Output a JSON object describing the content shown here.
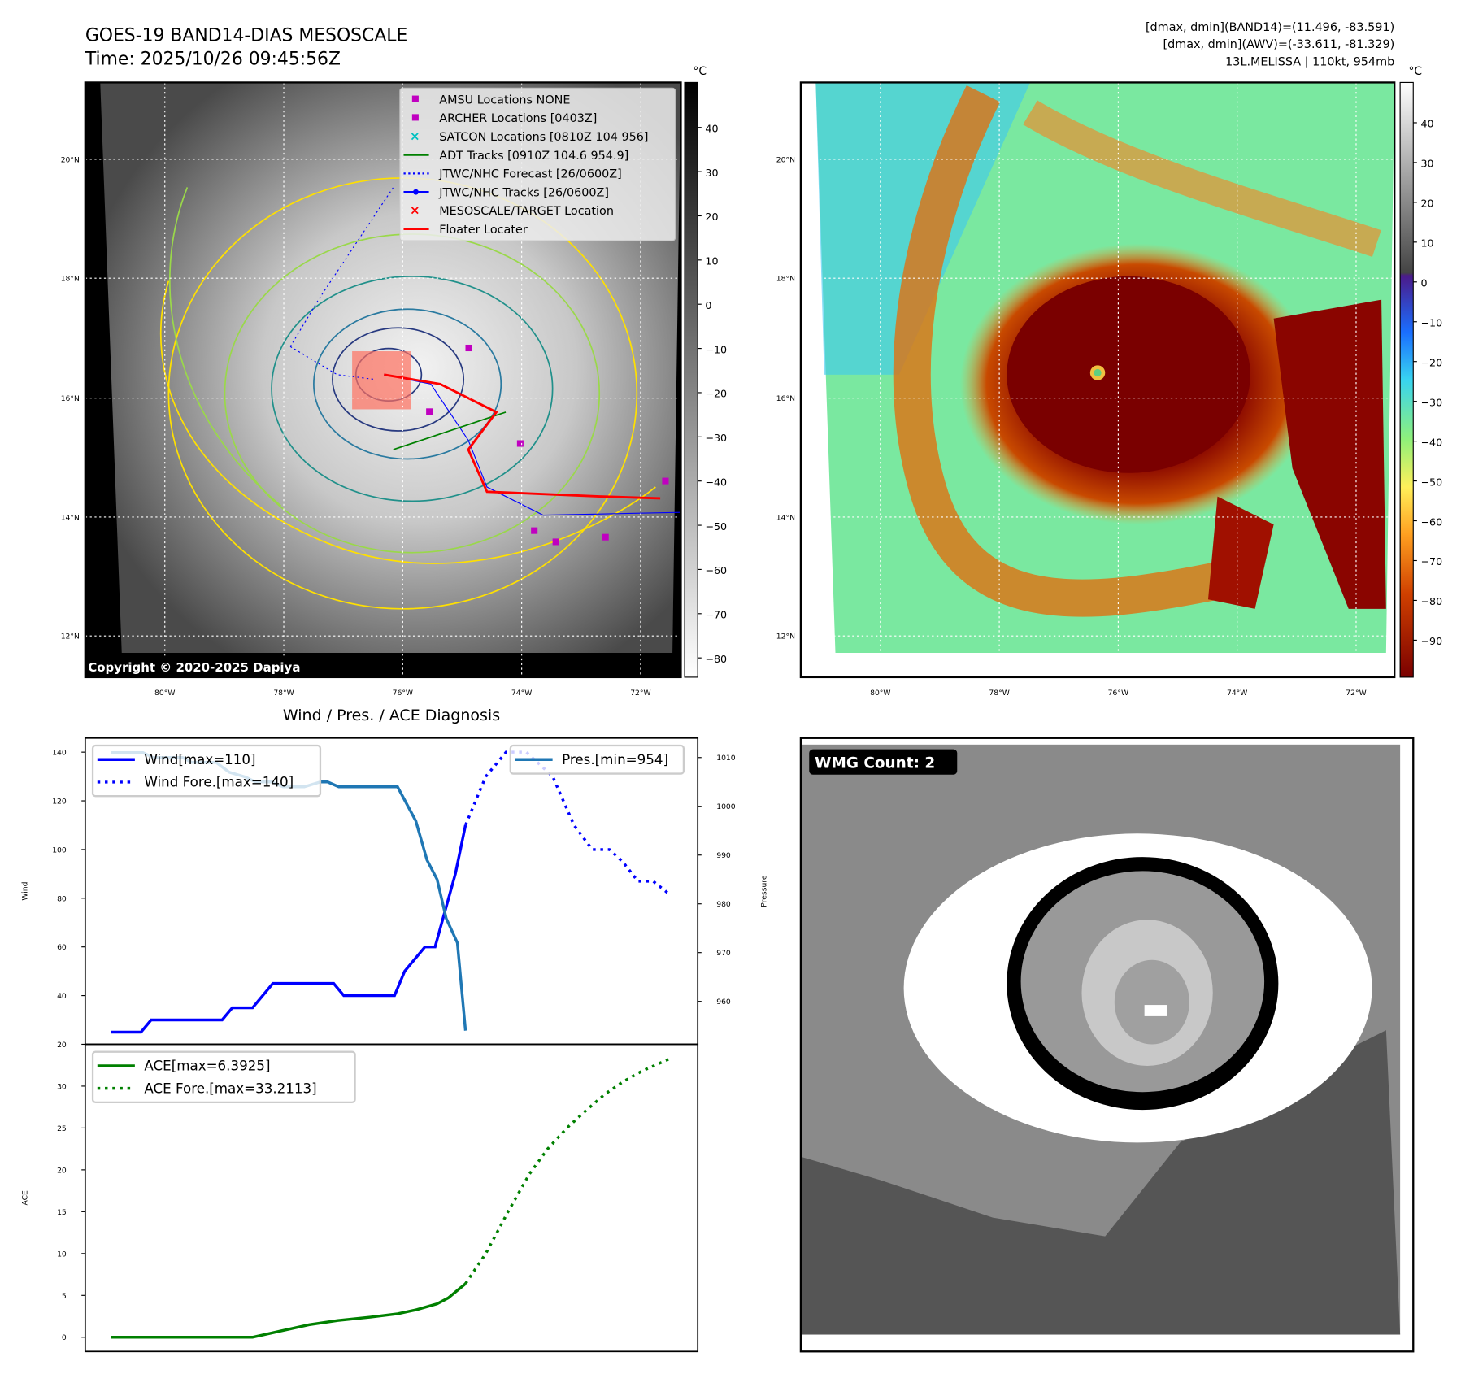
{
  "header": {
    "title": "GOES-19 BAND14-DIAS MESOSCALE",
    "time": "Time: 2025/10/26 09:45:56Z",
    "stats_band14": "[dmax, dmin](BAND14)=(11.496, -83.591)",
    "stats_awv": "[dmax, dmin](AWV)=(-33.611, -81.329)",
    "storm": "13L.MELISSA | 110kt, 954mb"
  },
  "map_left": {
    "copyright": "Copyright © 2020-2025 Dapiya",
    "lat_labels": [
      "20°N",
      "18°N",
      "16°N",
      "14°N",
      "12°N"
    ],
    "lon_labels": [
      "80°W",
      "78°W",
      "76°W",
      "74°W",
      "72°W"
    ],
    "colorbar_unit": "°C",
    "colorbar_ticks": [
      "40",
      "30",
      "20",
      "10",
      "0",
      "−10",
      "−20",
      "−30",
      "−40",
      "−50",
      "−60",
      "−70",
      "−80"
    ],
    "legend": [
      {
        "label": "AMSU Locations NONE",
        "marker": "square",
        "color": "#c000c0"
      },
      {
        "label": "ARCHER Locations [0403Z]",
        "marker": "square",
        "color": "#c000c0"
      },
      {
        "label": "SATCON Locations [0810Z 104 956]",
        "marker": "x",
        "color": "#00c0c0"
      },
      {
        "label": "ADT Tracks [0910Z 104.6 954.9]",
        "marker": "line",
        "color": "#008000"
      },
      {
        "label": "JTWC/NHC Forecast [26/0600Z]",
        "marker": "dotted",
        "color": "#0000ff"
      },
      {
        "label": "JTWC/NHC Tracks [26/0600Z]",
        "marker": "line-dot",
        "color": "#0000ff"
      },
      {
        "label": "MESOSCALE/TARGET Location",
        "marker": "x",
        "color": "#ff0000"
      },
      {
        "label": "Floater Locater",
        "marker": "line",
        "color": "#ff0000"
      }
    ]
  },
  "map_right": {
    "lat_labels": [
      "20°N",
      "18°N",
      "16°N",
      "14°N",
      "12°N"
    ],
    "lon_labels": [
      "80°W",
      "78°W",
      "76°W",
      "74°W",
      "72°W"
    ],
    "colorbar_unit": "°C",
    "colorbar_ticks": [
      "40",
      "30",
      "20",
      "10",
      "0",
      "−10",
      "−20",
      "−30",
      "−40",
      "−50",
      "−60",
      "−70",
      "−80",
      "−90"
    ]
  },
  "wmg": {
    "label": "WMG Count: 2"
  },
  "chart_data": {
    "type": "line",
    "title": "Wind / Pres. / ACE Diagnosis",
    "xlim": [
      -2.5,
      57.9
    ],
    "panels": [
      {
        "name": "wind-pressure",
        "ylabel": "Wind",
        "ylim": [
          20,
          145.8
        ],
        "yticks": [
          20,
          40,
          60,
          80,
          100,
          120,
          140
        ],
        "y2label": "Pressure",
        "y2lim": [
          951.2,
          1014
        ],
        "y2ticks": [
          960,
          970,
          980,
          990,
          1000,
          1010
        ],
        "series": [
          {
            "name": "Wind[max=110]",
            "axis": "left",
            "style": "solid",
            "color": "#0000ff",
            "x": [
              0,
              3,
              4,
              11,
              12,
              14,
              16,
              22,
              23,
              28,
              29,
              31,
              32,
              34,
              35
            ],
            "y": [
              25,
              25,
              30,
              30,
              35,
              35,
              45,
              45,
              40,
              40,
              50,
              60,
              60,
              90,
              110
            ]
          },
          {
            "name": "Wind Fore.[max=140]",
            "axis": "left",
            "style": "dotted",
            "color": "#0000ff",
            "x": [
              35,
              37,
              39,
              41,
              43.6,
              45.7,
              47.5,
              49.2,
              50.5,
              52,
              53.5,
              55
            ],
            "y": [
              110,
              130,
              140,
              140,
              130,
              110,
              100,
              100,
              95,
              87,
              87,
              82
            ]
          },
          {
            "name": "Pres.[min=954]",
            "axis": "right",
            "style": "solid",
            "color": "#1f77b4",
            "x": [
              0,
              3.2,
              4.2,
              7.1,
              8,
              10.4,
              11.7,
              13.3,
              14.3,
              15.9,
              17,
              19.1,
              20.7,
              21.4,
              22.5,
              24.2,
              28.3,
              30.1,
              31.2,
              32.2,
              33.1,
              34.2,
              35
            ],
            "y": [
              1011,
              1011,
              1010,
              1010,
              1009,
              1009,
              1007,
              1006,
              1005,
              1005,
              1004,
              1004,
              1005,
              1005,
              1004,
              1004,
              1004,
              997,
              989,
              985,
              977,
              972,
              954
            ]
          }
        ],
        "legends": [
          {
            "position": "upper-left",
            "entries": [
              "Wind[max=110]",
              "Wind Fore.[max=140]"
            ]
          },
          {
            "position": "upper-right",
            "entries": [
              "Pres.[min=954]"
            ]
          }
        ]
      },
      {
        "name": "ace",
        "ylabel": "ACE",
        "ylim": [
          -1.7,
          35
        ],
        "yticks": [
          0,
          5,
          10,
          15,
          20,
          25,
          30
        ],
        "series": [
          {
            "name": "ACE[max=6.3925]",
            "axis": "left",
            "style": "solid",
            "color": "#008000",
            "x": [
              0,
              14,
              16.6,
              19.6,
              22.4,
              25.6,
              28.3,
              30.2,
              32.2,
              33.3,
              34.2,
              35
            ],
            "y": [
              0,
              0,
              0.7,
              1.5,
              2,
              2.4,
              2.8,
              3.3,
              4,
              4.7,
              5.6,
              6.4
            ]
          },
          {
            "name": "ACE Fore.[max=33.2113]",
            "axis": "left",
            "style": "dotted",
            "color": "#008000",
            "x": [
              35,
              37,
              39.2,
              41.3,
              43.1,
              45,
              46.8,
              48.7,
              50.5,
              52.4,
              55
            ],
            "y": [
              6.4,
              10,
              15,
              19.5,
              22.5,
              25,
              27,
              29,
              30.5,
              31.8,
              33.2
            ]
          }
        ],
        "legends": [
          {
            "position": "upper-left",
            "entries": [
              "ACE[max=6.3925]",
              "ACE Fore.[max=33.2113]"
            ]
          }
        ]
      }
    ]
  }
}
